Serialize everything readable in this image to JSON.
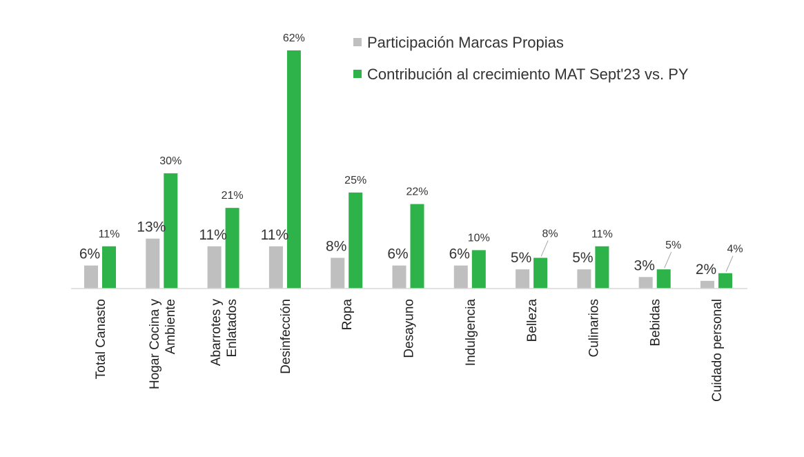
{
  "chart_data": {
    "type": "bar",
    "title": "",
    "xlabel": "",
    "ylabel": "",
    "categories": [
      [
        "Total Canasto"
      ],
      [
        "Hogar Cocina y",
        "Ambiente"
      ],
      [
        "Abarrotes y",
        "Enlatados"
      ],
      [
        "Desinfección"
      ],
      [
        "Ropa"
      ],
      [
        "Desayuno"
      ],
      [
        "Indulgencia"
      ],
      [
        "Belleza"
      ],
      [
        "Culinarios"
      ],
      [
        "Bebidas"
      ],
      [
        "Cuidado personal"
      ]
    ],
    "series": [
      {
        "name": "Participación Marcas Propias",
        "color": "#bfbfbf",
        "values": [
          6,
          13,
          11,
          11,
          8,
          6,
          6,
          5,
          5,
          3,
          2
        ],
        "labels": [
          "6%",
          "13%",
          "11%",
          "11%",
          "8%",
          "6%",
          "6%",
          "5%",
          "5%",
          "3%",
          "2%"
        ]
      },
      {
        "name": "Contribución al crecimiento MAT Sept'23 vs. PY",
        "color": "#2db34a",
        "values": [
          11,
          30,
          21,
          62,
          25,
          22,
          10,
          8,
          11,
          5,
          4
        ],
        "labels": [
          "11%",
          "30%",
          "21%",
          "62%",
          "25%",
          "22%",
          "10%",
          "8%",
          "11%",
          "5%",
          "4%"
        ]
      }
    ],
    "ylim": [
      0,
      62
    ],
    "grid": false,
    "legend": "top-right",
    "axis_color": "#d9d9d9"
  }
}
